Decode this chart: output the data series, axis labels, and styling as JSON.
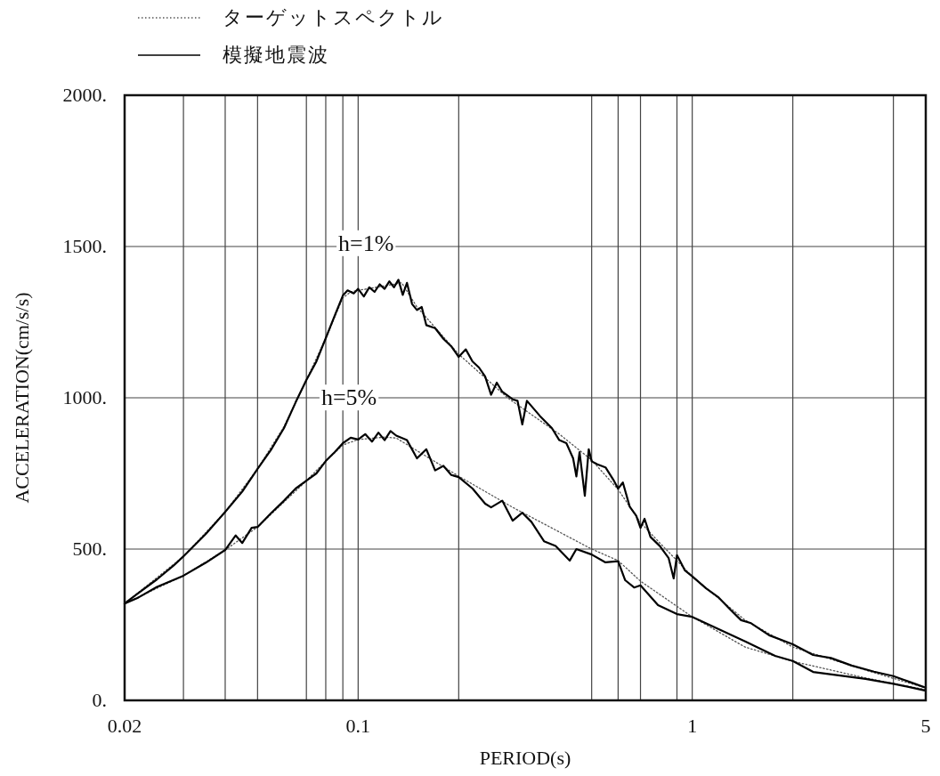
{
  "chart_data": {
    "type": "line",
    "xlabel": "PERIOD(s)",
    "ylabel": "ACCELERATION(cm/s/s)",
    "log": "x",
    "grid": true,
    "legend": "top",
    "marker": "none",
    "xlim": [
      0.02,
      5
    ],
    "ylim": [
      0,
      2000
    ],
    "xticks": [
      0.02,
      {
        "value": 0.03,
        "label": null
      },
      {
        "value": 0.04,
        "label": null
      },
      {
        "value": 0.05,
        "label": null
      },
      {
        "value": 0.07,
        "label": null
      },
      {
        "value": 0.08,
        "label": null
      },
      {
        "value": 0.09,
        "label": null
      },
      0.1,
      {
        "value": 0.2,
        "label": null
      },
      {
        "value": 0.5,
        "label": null
      },
      {
        "value": 0.6,
        "label": null
      },
      {
        "value": 0.7,
        "label": null
      },
      {
        "value": 0.9,
        "label": null
      },
      1,
      {
        "value": 2,
        "label": null
      },
      {
        "value": 4,
        "label": null
      },
      5
    ],
    "yticks": [
      {
        "value": 0,
        "label": "0."
      },
      {
        "value": 500,
        "label": "500."
      },
      {
        "value": 1000,
        "label": "1000."
      },
      {
        "value": 1500,
        "label": "1500."
      },
      {
        "value": 2000,
        "label": "2000."
      }
    ],
    "annotations": [
      "h=1%",
      "h=5%"
    ],
    "series": [
      {
        "name": "ターゲットスペクトル",
        "color": "#555555",
        "line_style": "dotted",
        "x": [
          0.02,
          0.03,
          0.04,
          0.05,
          0.06,
          0.07,
          0.08,
          0.09,
          0.095,
          0.1,
          0.12,
          0.135,
          0.15,
          0.2,
          0.28,
          0.4,
          0.5,
          0.6,
          0.7,
          0.8,
          0.9,
          1.0,
          1.44,
          2.0,
          3.3,
          5
        ],
        "values": [
          320,
          476,
          623,
          765,
          905,
          1059,
          1197,
          1330,
          1350,
          1355,
          1370,
          1380,
          1300,
          1144,
          1000,
          880,
          794,
          697,
          588,
          520,
          462,
          409,
          265,
          176,
          100,
          41
        ]
      },
      {
        "color": "#555555",
        "line_style": "dotted",
        "x": [
          0.02,
          0.03,
          0.04,
          0.05,
          0.07,
          0.08,
          0.09,
          0.1,
          0.12,
          0.13,
          0.2,
          0.29,
          0.5,
          0.6,
          0.7,
          1.0,
          1.44,
          2.0,
          3.3,
          5
        ],
        "values": [
          320,
          412,
          497,
          573,
          726,
          791,
          844,
          862,
          870,
          867,
          741,
          638,
          500,
          462,
          394,
          276,
          176,
          129,
          74,
          35
        ]
      },
      {
        "name": "模擬地震波",
        "color": "#000000",
        "line_style": "solid",
        "x": [
          0.02,
          0.022,
          0.025,
          0.028,
          0.03,
          0.035,
          0.04,
          0.045,
          0.05,
          0.055,
          0.06,
          0.065,
          0.07,
          0.075,
          0.08,
          0.085,
          0.09,
          0.093,
          0.097,
          0.1,
          0.104,
          0.108,
          0.112,
          0.116,
          0.12,
          0.124,
          0.128,
          0.132,
          0.136,
          0.14,
          0.145,
          0.15,
          0.155,
          0.16,
          0.17,
          0.18,
          0.19,
          0.2,
          0.21,
          0.22,
          0.23,
          0.24,
          0.25,
          0.26,
          0.27,
          0.29,
          0.3,
          0.31,
          0.32,
          0.35,
          0.38,
          0.4,
          0.42,
          0.44,
          0.45,
          0.46,
          0.477,
          0.49,
          0.5,
          0.52,
          0.55,
          0.58,
          0.6,
          0.62,
          0.65,
          0.68,
          0.7,
          0.72,
          0.75,
          0.8,
          0.85,
          0.88,
          0.9,
          0.95,
          1.0,
          1.1,
          1.2,
          1.3,
          1.4,
          1.5,
          1.7,
          1.9,
          2.0,
          2.3,
          2.6,
          3.0,
          3.5,
          4.0,
          4.5,
          5
        ],
        "values": [
          320,
          355,
          400,
          445,
          476,
          550,
          623,
          690,
          765,
          830,
          900,
          985,
          1059,
          1120,
          1197,
          1270,
          1338,
          1355,
          1345,
          1360,
          1335,
          1365,
          1350,
          1375,
          1360,
          1385,
          1365,
          1390,
          1340,
          1380,
          1310,
          1290,
          1300,
          1240,
          1230,
          1195,
          1170,
          1135,
          1160,
          1120,
          1100,
          1070,
          1010,
          1050,
          1020,
          995,
          990,
          912,
          990,
          940,
          900,
          860,
          850,
          800,
          740,
          820,
          676,
          830,
          790,
          780,
          770,
          730,
          700,
          720,
          640,
          610,
          570,
          600,
          540,
          510,
          470,
          403,
          480,
          430,
          410,
          370,
          340,
          300,
          265,
          255,
          215,
          195,
          185,
          150,
          140,
          115,
          95,
          80,
          60,
          42
        ]
      },
      {
        "color": "#000000",
        "line_style": "solid",
        "x": [
          0.02,
          0.022,
          0.025,
          0.03,
          0.035,
          0.04,
          0.043,
          0.045,
          0.048,
          0.05,
          0.055,
          0.06,
          0.065,
          0.07,
          0.075,
          0.08,
          0.085,
          0.09,
          0.095,
          0.1,
          0.105,
          0.11,
          0.115,
          0.12,
          0.125,
          0.13,
          0.14,
          0.15,
          0.16,
          0.17,
          0.18,
          0.19,
          0.2,
          0.22,
          0.24,
          0.25,
          0.27,
          0.29,
          0.31,
          0.33,
          0.36,
          0.39,
          0.43,
          0.45,
          0.5,
          0.55,
          0.6,
          0.63,
          0.67,
          0.7,
          0.79,
          0.9,
          1.0,
          1.2,
          1.44,
          1.77,
          2.0,
          2.3,
          3.3,
          4.0,
          5
        ],
        "values": [
          320,
          340,
          375,
          412,
          455,
          497,
          545,
          520,
          570,
          573,
          620,
          660,
          700,
          726,
          750,
          791,
          820,
          850,
          868,
          862,
          880,
          855,
          885,
          860,
          890,
          875,
          860,
          800,
          830,
          760,
          775,
          745,
          738,
          700,
          650,
          638,
          660,
          594,
          620,
          590,
          526,
          510,
          462,
          500,
          482,
          456,
          460,
          397,
          373,
          380,
          315,
          285,
          276,
          235,
          195,
          147,
          130,
          94,
          71,
          55,
          32
        ]
      }
    ]
  }
}
